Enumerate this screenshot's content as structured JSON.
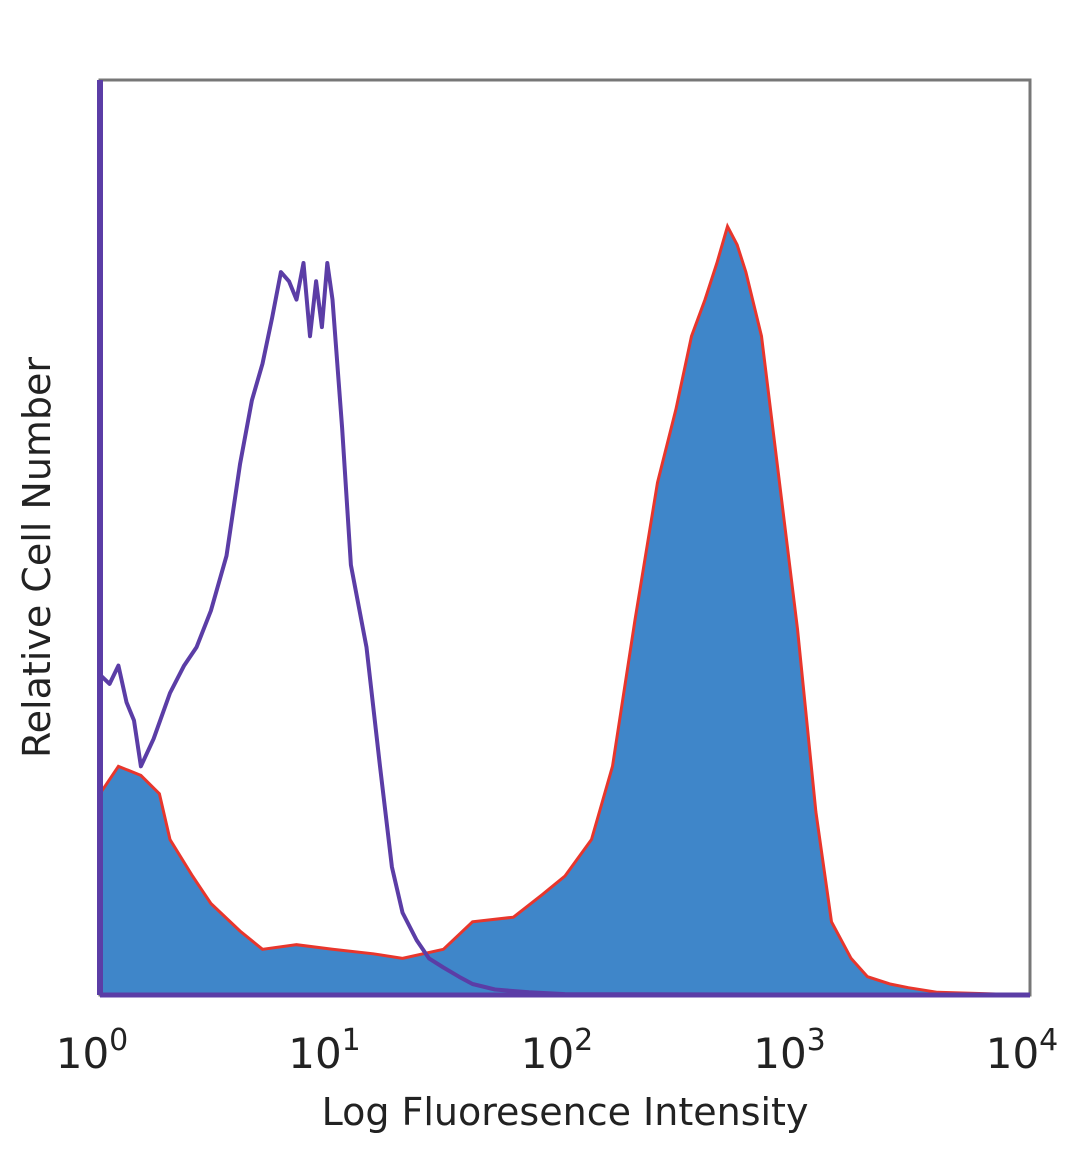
{
  "chart_data": {
    "type": "area",
    "xlabel": "Log Fluoresence Intensity",
    "ylabel": "Relative Cell Number",
    "x_scale": "log",
    "xlim": [
      1,
      10000
    ],
    "ylim": [
      0,
      100
    ],
    "grid": false,
    "x_ticks": [
      {
        "base": "10",
        "exp": "0",
        "value": 1
      },
      {
        "base": "10",
        "exp": "1",
        "value": 10
      },
      {
        "base": "10",
        "exp": "2",
        "value": 100
      },
      {
        "base": "10",
        "exp": "3",
        "value": 1000
      },
      {
        "base": "10",
        "exp": "4",
        "value": 10000
      }
    ],
    "series": [
      {
        "style": "filled",
        "fill": "#3f86c9",
        "stroke": "#e8362c",
        "x": [
          1,
          1.2,
          1.5,
          1.8,
          2,
          2.5,
          3,
          4,
          5,
          7,
          10,
          15,
          20,
          30,
          40,
          60,
          80,
          100,
          130,
          160,
          200,
          250,
          300,
          350,
          400,
          450,
          500,
          550,
          600,
          700,
          800,
          1000,
          1200,
          1400,
          1700,
          2000,
          2500,
          3000,
          4000,
          10000
        ],
        "y": [
          22,
          25,
          24,
          22,
          17,
          13,
          10,
          7,
          5,
          5.5,
          5,
          4.5,
          4,
          5,
          8,
          8.5,
          11,
          13,
          17,
          25,
          41,
          56,
          64,
          72,
          76,
          80,
          84,
          82,
          79,
          72,
          60,
          40,
          20,
          8,
          4,
          2,
          1.2,
          0.8,
          0.3,
          0
        ]
      },
      {
        "style": "line",
        "stroke": "#5b3da6",
        "x": [
          1,
          1.1,
          1.2,
          1.3,
          1.4,
          1.5,
          1.7,
          2,
          2.3,
          2.6,
          3,
          3.5,
          4,
          4.5,
          5,
          5.5,
          6,
          6.5,
          7,
          7.5,
          8,
          8.5,
          9,
          9.5,
          10,
          11,
          12,
          14,
          16,
          18,
          20,
          23,
          26,
          30,
          35,
          40,
          50,
          70,
          100,
          10000
        ],
        "y": [
          35,
          34,
          36,
          32,
          30,
          25,
          28,
          33,
          36,
          38,
          42,
          48,
          58,
          65,
          69,
          74,
          79,
          78,
          76,
          80,
          72,
          78,
          73,
          80,
          76,
          62,
          47,
          38,
          25,
          14,
          9,
          6,
          4,
          3,
          2,
          1.2,
          0.6,
          0.3,
          0.1,
          0
        ]
      }
    ]
  }
}
